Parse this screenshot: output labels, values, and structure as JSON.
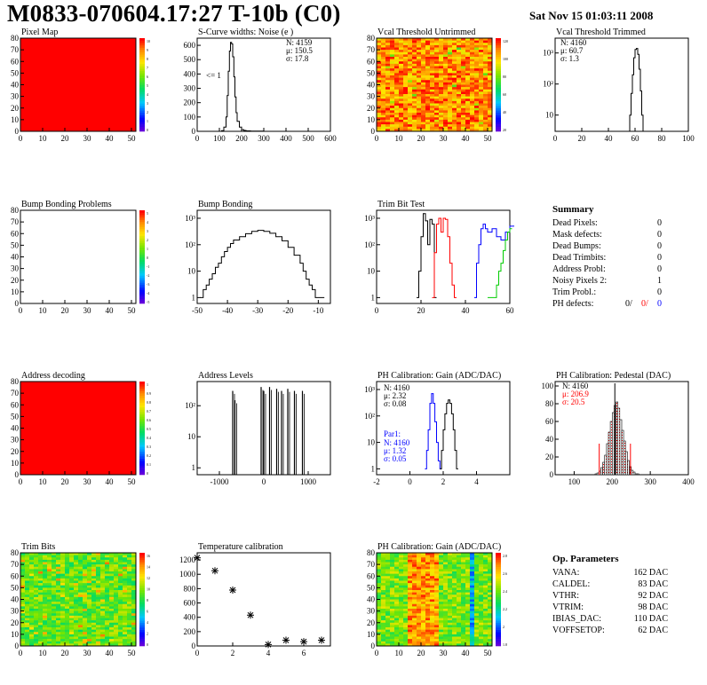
{
  "header": {
    "title": "M0833-070604.17:27 T-10b (C0)",
    "timestamp": "Sat Nov 15 01:03:11 2008"
  },
  "colors": {
    "red": "#ff0000",
    "blue": "#0000ff",
    "green": "#00cc00"
  },
  "chart_data": [
    {
      "id": "pixel-map",
      "type": "heatmap",
      "title": "Pixel Map",
      "xlim": [
        0,
        52
      ],
      "ylim": [
        0,
        80
      ],
      "xticks": [
        "0",
        "10",
        "20",
        "30",
        "40",
        "50"
      ],
      "yticks": [
        "0",
        "10",
        "20",
        "30",
        "40",
        "50",
        "60",
        "70",
        "80"
      ],
      "zlim": [
        0,
        10
      ],
      "zticks": [
        "0",
        "1",
        "2",
        "3",
        "4",
        "5",
        "6",
        "7",
        "8",
        "9",
        "10"
      ],
      "fill": "uniform-max"
    },
    {
      "id": "scurve-noise",
      "type": "line",
      "title": "S-Curve widths: Noise (e )",
      "xlim": [
        0,
        600
      ],
      "ylim": [
        0,
        650
      ],
      "xticks": [
        "0",
        "100",
        "200",
        "300",
        "400",
        "500",
        "600"
      ],
      "yticks": [
        "0",
        "100",
        "200",
        "300",
        "400",
        "500",
        "600"
      ],
      "x": [
        100,
        110,
        120,
        130,
        135,
        140,
        145,
        150,
        155,
        160,
        165,
        170,
        175,
        180,
        190,
        200,
        210,
        220,
        240,
        260,
        280,
        300
      ],
      "y": [
        0,
        5,
        30,
        100,
        250,
        420,
        560,
        620,
        610,
        520,
        380,
        240,
        130,
        70,
        30,
        12,
        6,
        3,
        2,
        1,
        1,
        0
      ],
      "stats": {
        "n": "N: 4159",
        "mean": "μ: 150.5",
        "sigma": "σ: 17.8"
      },
      "annotation": "<= 1"
    },
    {
      "id": "vcal-untrimmed",
      "type": "heatmap",
      "title": "Vcal Threshold Untrimmed",
      "xlim": [
        0,
        52
      ],
      "ylim": [
        0,
        80
      ],
      "xticks": [
        "0",
        "10",
        "20",
        "30",
        "40",
        "50"
      ],
      "yticks": [
        "0",
        "10",
        "20",
        "30",
        "40",
        "50",
        "60",
        "70",
        "80"
      ],
      "zticks": [
        "20",
        "40",
        "60",
        "80",
        "100",
        "120"
      ],
      "fill": "random-warm"
    },
    {
      "id": "vcal-trimmed",
      "type": "line",
      "title": "Vcal Threshold Trimmed",
      "xlim": [
        0,
        100
      ],
      "ylog": true,
      "ylim": [
        3,
        3000
      ],
      "xticks": [
        "0",
        "20",
        "40",
        "60",
        "80",
        "100"
      ],
      "yticks": [
        "10",
        "10²",
        "10³"
      ],
      "x": [
        55,
        56,
        57,
        58,
        59,
        60,
        61,
        62,
        63,
        64,
        65,
        66,
        67
      ],
      "y": [
        3,
        10,
        50,
        200,
        700,
        1300,
        1400,
        900,
        300,
        60,
        10,
        3,
        3
      ],
      "stats": {
        "n": "N: 4160",
        "mean": "μ: 60.7",
        "sigma": "σ:  1.3"
      }
    },
    {
      "id": "bump-bonding-problems",
      "type": "heatmap",
      "title": "Bump Bonding Problems",
      "xlim": [
        0,
        52
      ],
      "ylim": [
        0,
        80
      ],
      "xticks": [
        "0",
        "10",
        "20",
        "30",
        "40",
        "50"
      ],
      "yticks": [
        "0",
        "10",
        "20",
        "30",
        "40",
        "50",
        "60",
        "70",
        "80"
      ],
      "zticks": [
        "-5",
        "-4",
        "-3",
        "-2",
        "-1",
        "0",
        "1",
        "2",
        "3",
        "4",
        "5"
      ],
      "fill": "empty"
    },
    {
      "id": "bump-bonding",
      "type": "line",
      "title": "Bump Bonding",
      "xlim": [
        -50,
        -6
      ],
      "ylog": true,
      "ylim": [
        0.6,
        2000
      ],
      "xticks": [
        "-50",
        "-40",
        "-30",
        "-20",
        "-10"
      ],
      "yticks": [
        "1",
        "10",
        "10²",
        "10³"
      ],
      "x": [
        -49,
        -48,
        -47,
        -46,
        -45,
        -44,
        -43,
        -42,
        -41,
        -40,
        -39,
        -38,
        -36,
        -34,
        -32,
        -30,
        -28,
        -26,
        -24,
        -22,
        -20,
        -18,
        -16,
        -15,
        -14,
        -13,
        -12,
        -11,
        -10,
        -9
      ],
      "y": [
        1,
        2,
        3,
        5,
        8,
        14,
        20,
        35,
        55,
        80,
        110,
        150,
        200,
        260,
        320,
        350,
        320,
        270,
        200,
        140,
        80,
        40,
        20,
        10,
        5,
        3,
        2,
        1,
        1,
        1
      ]
    },
    {
      "id": "trim-bit-test",
      "type": "line",
      "title": "Trim Bit Test",
      "xlim": [
        0,
        60
      ],
      "ylog": true,
      "ylim": [
        0.6,
        2000
      ],
      "xticks": [
        "0",
        "20",
        "40",
        "60"
      ],
      "yticks": [
        "1",
        "10",
        "10²",
        "10³"
      ],
      "series": [
        {
          "color": "black",
          "x": [
            18,
            19,
            20,
            21,
            22,
            23,
            24,
            25,
            26
          ],
          "y": [
            1,
            10,
            200,
            1500,
            800,
            100,
            900,
            600,
            1
          ]
        },
        {
          "color": "red",
          "x": [
            25,
            26,
            27,
            28,
            29,
            30,
            31,
            32,
            33,
            34,
            35
          ],
          "y": [
            1,
            50,
            600,
            1000,
            300,
            1000,
            900,
            200,
            20,
            3,
            1
          ]
        },
        {
          "color": "blue",
          "x": [
            44,
            45,
            46,
            47,
            48,
            49,
            50,
            52,
            54,
            56,
            58,
            60
          ],
          "y": [
            1,
            20,
            100,
            400,
            600,
            400,
            300,
            400,
            200,
            150,
            300,
            500
          ]
        },
        {
          "color": "green",
          "x": [
            50,
            51,
            52,
            53,
            54,
            55,
            56,
            57,
            58,
            59,
            60
          ],
          "y": [
            1,
            1,
            1,
            1,
            3,
            10,
            20,
            60,
            150,
            300,
            400
          ]
        }
      ]
    },
    {
      "id": "address-decoding",
      "type": "heatmap",
      "title": "Address decoding",
      "xlim": [
        0,
        52
      ],
      "ylim": [
        0,
        80
      ],
      "xticks": [
        "0",
        "10",
        "20",
        "30",
        "40",
        "50"
      ],
      "yticks": [
        "0",
        "10",
        "20",
        "30",
        "40",
        "50",
        "60",
        "70",
        "80"
      ],
      "zticks": [
        "0",
        "0.1",
        "0.2",
        "0.3",
        "0.4",
        "0.5",
        "0.6",
        "0.7",
        "0.8",
        "0.9",
        "1"
      ],
      "fill": "uniform-max"
    },
    {
      "id": "address-levels",
      "type": "bar",
      "title": "Address Levels",
      "xlim": [
        -1500,
        1500
      ],
      "ylog": true,
      "ylim": [
        0.6,
        600
      ],
      "xticks": [
        "-1000",
        "0",
        "1000"
      ],
      "yticks": [
        "1",
        "10",
        "10²"
      ],
      "x": [
        -700,
        -650,
        -60,
        0,
        130,
        290,
        400,
        540,
        690,
        870
      ],
      "y": [
        300,
        150,
        400,
        300,
        400,
        350,
        300,
        350,
        300,
        300
      ]
    },
    {
      "id": "ph-gain",
      "type": "line",
      "title": "PH Calibration: Gain (ADC/DAC)",
      "xlim": [
        -2,
        6
      ],
      "ylog": true,
      "ylim": [
        0.6,
        2000
      ],
      "xticks": [
        "-2",
        "0",
        "2",
        "4"
      ],
      "yticks": [
        "1",
        "10",
        "10²",
        "10³"
      ],
      "series": [
        {
          "color": "blue",
          "x": [
            0.9,
            1.0,
            1.1,
            1.2,
            1.3,
            1.4,
            1.5,
            1.6,
            1.7,
            1.8
          ],
          "y": [
            1,
            5,
            30,
            300,
            700,
            300,
            60,
            10,
            2,
            1
          ]
        },
        {
          "color": "black",
          "x": [
            1.8,
            1.9,
            2.0,
            2.1,
            2.2,
            2.3,
            2.4,
            2.5,
            2.6,
            2.7,
            2.8
          ],
          "y": [
            1,
            5,
            30,
            120,
            300,
            400,
            300,
            120,
            30,
            5,
            1
          ]
        }
      ],
      "stats": {
        "n": "N: 4160",
        "mean": "μ: 2.32",
        "sigma": "σ: 0.08"
      },
      "stats2": {
        "label": "Par1:",
        "n": "N: 4160",
        "mean": "μ: 1.32",
        "sigma": "σ: 0.05"
      }
    },
    {
      "id": "ph-pedestal",
      "type": "bar",
      "title": "PH Calibration: Pedestal (DAC)",
      "xlim": [
        50,
        400
      ],
      "ylim": [
        0,
        105
      ],
      "xticks": [
        "100",
        "200",
        "300",
        "400"
      ],
      "yticks": [
        "0",
        "20",
        "40",
        "60",
        "80",
        "100"
      ],
      "x": [
        155,
        160,
        165,
        170,
        175,
        180,
        185,
        190,
        195,
        200,
        205,
        210,
        215,
        220,
        225,
        230,
        235,
        240,
        245,
        250,
        255,
        260,
        265
      ],
      "y": [
        1,
        2,
        4,
        8,
        14,
        22,
        35,
        48,
        60,
        70,
        78,
        82,
        75,
        62,
        50,
        38,
        26,
        16,
        9,
        5,
        3,
        1,
        1
      ],
      "stats": {
        "n": "N: 4160",
        "mean": "μ: 206.9",
        "sigma": "σ: 20.5"
      }
    },
    {
      "id": "trim-bits",
      "type": "heatmap",
      "title": "Trim Bits",
      "xlim": [
        0,
        52
      ],
      "ylim": [
        0,
        80
      ],
      "xticks": [
        "0",
        "10",
        "20",
        "30",
        "40",
        "50"
      ],
      "yticks": [
        "0",
        "10",
        "20",
        "30",
        "40",
        "50",
        "60",
        "70",
        "80"
      ],
      "zticks": [
        "0",
        "2",
        "4",
        "6",
        "8",
        "10",
        "12",
        "14",
        "16"
      ],
      "fill": "random-green"
    },
    {
      "id": "temperature-calibration",
      "type": "scatter",
      "title": "Temperature calibration",
      "xlim": [
        0,
        7.5
      ],
      "ylim": [
        0,
        1300
      ],
      "xticks": [
        "0",
        "2",
        "4",
        "6"
      ],
      "yticks": [
        "0",
        "200",
        "400",
        "600",
        "800",
        "1000",
        "1200"
      ],
      "x": [
        0,
        1,
        2,
        3,
        4,
        5,
        6,
        7
      ],
      "y": [
        1230,
        1050,
        780,
        430,
        20,
        80,
        60,
        80
      ]
    },
    {
      "id": "ph-gain-map",
      "type": "heatmap",
      "title": "PH Calibration: Gain (ADC/DAC)",
      "xlim": [
        0,
        52
      ],
      "ylim": [
        0,
        80
      ],
      "xticks": [
        "0",
        "10",
        "20",
        "30",
        "40",
        "50"
      ],
      "yticks": [
        "0",
        "10",
        "20",
        "30",
        "40",
        "50",
        "60",
        "70",
        "80"
      ],
      "zticks": [
        "1.8",
        "2",
        "2.2",
        "2.4",
        "2.6",
        "2.8"
      ],
      "fill": "random-ph"
    }
  ],
  "summary": {
    "title": "Summary",
    "rows": [
      {
        "label": "Dead Pixels:",
        "value": "0"
      },
      {
        "label": "Mask defects:",
        "value": "0"
      },
      {
        "label": "Dead Bumps:",
        "value": "0"
      },
      {
        "label": "Dead Trimbits:",
        "value": "0"
      },
      {
        "label": "Address Probl:",
        "value": "0"
      },
      {
        "label": "Noisy Pixels 2:",
        "value": "1"
      },
      {
        "label": "Trim Probl.:",
        "value": "0"
      }
    ],
    "ph_defects": {
      "label": "PH defects:",
      "v1": "0/",
      "v2": "0/",
      "v3": "0"
    }
  },
  "op_parameters": {
    "title": "Op. Parameters",
    "rows": [
      {
        "label": "VANA:",
        "value": "162 DAC"
      },
      {
        "label": "CALDEL:",
        "value": "83 DAC"
      },
      {
        "label": "VTHR:",
        "value": "92 DAC"
      },
      {
        "label": "VTRIM:",
        "value": "98 DAC"
      },
      {
        "label": "IBIAS_DAC:",
        "value": "110 DAC"
      },
      {
        "label": "VOFFSETOP:",
        "value": "62 DAC"
      }
    ]
  }
}
